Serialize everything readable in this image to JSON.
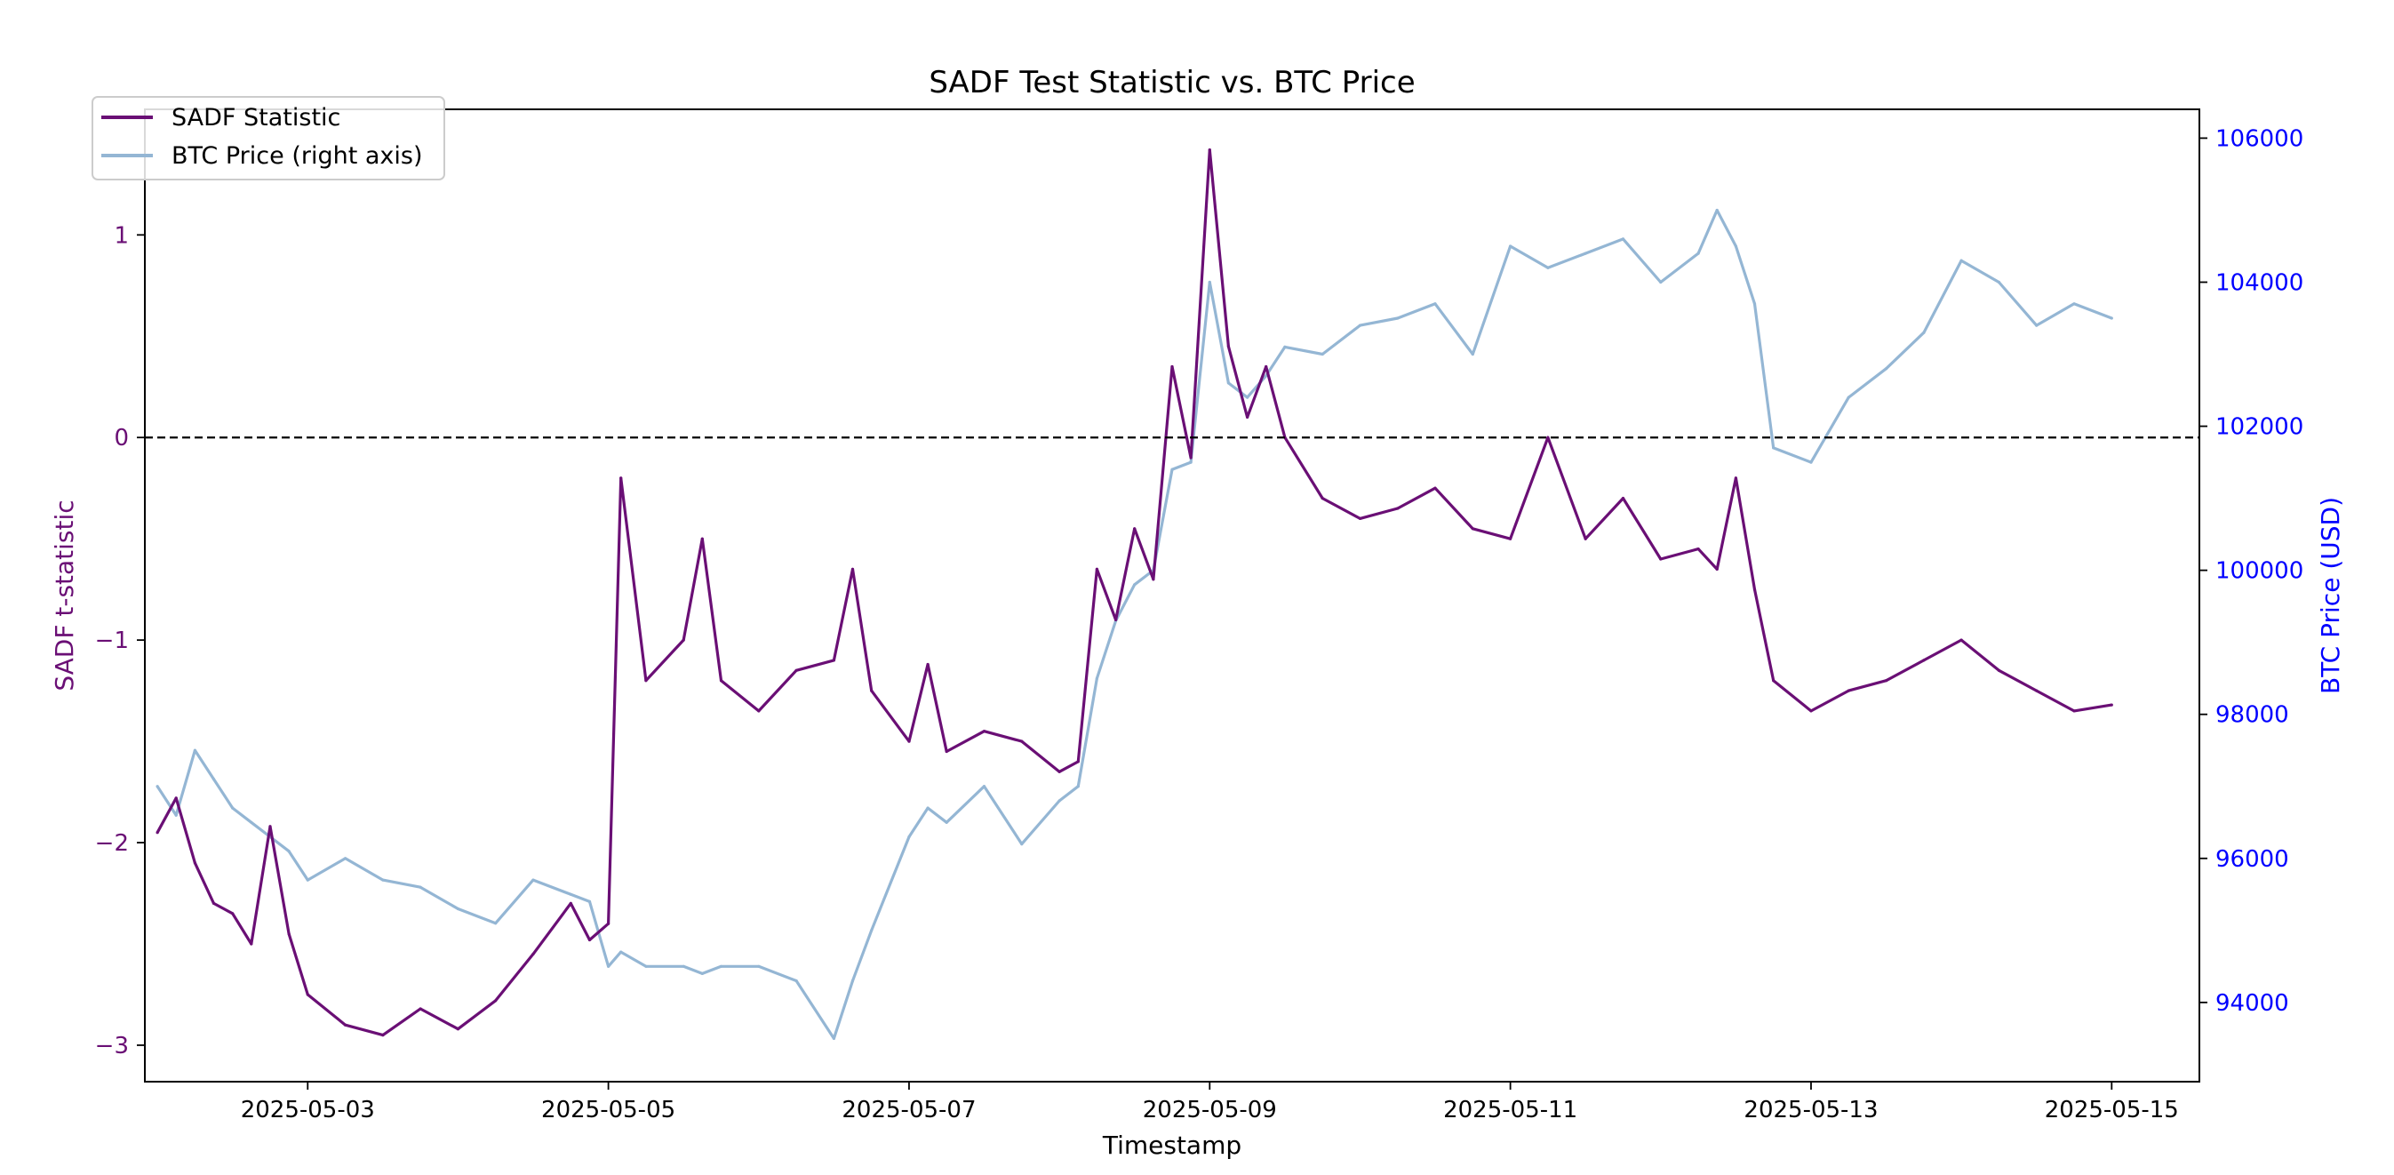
{
  "chart_data": {
    "type": "line",
    "title": "SADF Test Statistic vs. BTC Price",
    "xlabel": "Timestamp",
    "ylabel_left": "SADF t-statistic",
    "ylabel_right": "BTC Price (USD)",
    "x_ticks": [
      "2025-05-03",
      "2025-05-05",
      "2025-05-07",
      "2025-05-09",
      "2025-05-11",
      "2025-05-13",
      "2025-05-15"
    ],
    "y_left_ticks": [
      1,
      0,
      -1,
      -2,
      -3
    ],
    "y_left_tick_labels": [
      "1",
      "0",
      "−1",
      "−2",
      "−3"
    ],
    "y_left_range": [
      -3.18,
      1.62
    ],
    "y_right_ticks": [
      106000,
      104000,
      102000,
      100000,
      98000,
      96000,
      94000
    ],
    "y_right_tick_labels": [
      "106000",
      "104000",
      "102000",
      "100000",
      "98000",
      "96000",
      "94000"
    ],
    "y_right_range": [
      92900,
      106400
    ],
    "x_range": [
      "2025-05-01T22:00",
      "2025-05-15T14:00"
    ],
    "reference_line": {
      "y": 0,
      "style": "dashed",
      "color": "#000000"
    },
    "grid": false,
    "legend_position": "top-left",
    "colors": {
      "sadf": "#6a0f75",
      "btc": "#94b6d4",
      "left_axis": "#6a0f75",
      "right_axis": "#0000ff"
    },
    "series": [
      {
        "name": "SADF Statistic",
        "axis": "left",
        "x": [
          "2025-05-02T00:00",
          "2025-05-02T03:00",
          "2025-05-02T06:00",
          "2025-05-02T09:00",
          "2025-05-02T12:00",
          "2025-05-02T15:00",
          "2025-05-02T18:00",
          "2025-05-02T21:00",
          "2025-05-03T00:00",
          "2025-05-03T06:00",
          "2025-05-03T12:00",
          "2025-05-03T18:00",
          "2025-05-04T00:00",
          "2025-05-04T06:00",
          "2025-05-04T12:00",
          "2025-05-04T18:00",
          "2025-05-04T21:00",
          "2025-05-05T00:00",
          "2025-05-05T02:00",
          "2025-05-05T06:00",
          "2025-05-05T12:00",
          "2025-05-05T15:00",
          "2025-05-05T18:00",
          "2025-05-06T00:00",
          "2025-05-06T06:00",
          "2025-05-06T12:00",
          "2025-05-06T15:00",
          "2025-05-06T18:00",
          "2025-05-07T00:00",
          "2025-05-07T03:00",
          "2025-05-07T06:00",
          "2025-05-07T12:00",
          "2025-05-07T18:00",
          "2025-05-08T00:00",
          "2025-05-08T03:00",
          "2025-05-08T06:00",
          "2025-05-08T09:00",
          "2025-05-08T12:00",
          "2025-05-08T15:00",
          "2025-05-08T18:00",
          "2025-05-08T21:00",
          "2025-05-09T00:00",
          "2025-05-09T03:00",
          "2025-05-09T06:00",
          "2025-05-09T09:00",
          "2025-05-09T12:00",
          "2025-05-09T18:00",
          "2025-05-10T00:00",
          "2025-05-10T06:00",
          "2025-05-10T12:00",
          "2025-05-10T18:00",
          "2025-05-11T00:00",
          "2025-05-11T06:00",
          "2025-05-11T12:00",
          "2025-05-11T18:00",
          "2025-05-12T00:00",
          "2025-05-12T06:00",
          "2025-05-12T09:00",
          "2025-05-12T12:00",
          "2025-05-12T15:00",
          "2025-05-12T18:00",
          "2025-05-13T00:00",
          "2025-05-13T06:00",
          "2025-05-13T12:00",
          "2025-05-13T18:00",
          "2025-05-14T00:00",
          "2025-05-14T06:00",
          "2025-05-14T12:00",
          "2025-05-14T18:00",
          "2025-05-15T00:00"
        ],
        "values": [
          -1.95,
          -1.78,
          -2.1,
          -2.3,
          -2.35,
          -2.5,
          -1.92,
          -2.45,
          -2.75,
          -2.9,
          -2.95,
          -2.82,
          -2.92,
          -2.78,
          -2.55,
          -2.3,
          -2.48,
          -2.4,
          -0.2,
          -1.2,
          -1.0,
          -0.5,
          -1.2,
          -1.35,
          -1.15,
          -1.1,
          -0.65,
          -1.25,
          -1.5,
          -1.12,
          -1.55,
          -1.45,
          -1.5,
          -1.65,
          -1.6,
          -0.65,
          -0.9,
          -0.45,
          -0.7,
          0.35,
          -0.1,
          1.42,
          0.45,
          0.1,
          0.35,
          0.0,
          -0.3,
          -0.4,
          -0.35,
          -0.25,
          -0.45,
          -0.5,
          0.0,
          -0.5,
          -0.3,
          -0.6,
          -0.55,
          -0.65,
          -0.2,
          -0.75,
          -1.2,
          -1.35,
          -1.25,
          -1.2,
          -1.1,
          -1.0,
          -1.15,
          -1.25,
          -1.35,
          -1.32
        ]
      },
      {
        "name": "BTC Price (right axis)",
        "axis": "right",
        "x": [
          "2025-05-02T00:00",
          "2025-05-02T03:00",
          "2025-05-02T06:00",
          "2025-05-02T09:00",
          "2025-05-02T12:00",
          "2025-05-02T15:00",
          "2025-05-02T18:00",
          "2025-05-02T21:00",
          "2025-05-03T00:00",
          "2025-05-03T06:00",
          "2025-05-03T12:00",
          "2025-05-03T18:00",
          "2025-05-04T00:00",
          "2025-05-04T06:00",
          "2025-05-04T12:00",
          "2025-05-04T18:00",
          "2025-05-04T21:00",
          "2025-05-05T00:00",
          "2025-05-05T02:00",
          "2025-05-05T06:00",
          "2025-05-05T12:00",
          "2025-05-05T15:00",
          "2025-05-05T18:00",
          "2025-05-06T00:00",
          "2025-05-06T06:00",
          "2025-05-06T12:00",
          "2025-05-06T15:00",
          "2025-05-06T18:00",
          "2025-05-07T00:00",
          "2025-05-07T03:00",
          "2025-05-07T06:00",
          "2025-05-07T12:00",
          "2025-05-07T18:00",
          "2025-05-08T00:00",
          "2025-05-08T03:00",
          "2025-05-08T06:00",
          "2025-05-08T09:00",
          "2025-05-08T12:00",
          "2025-05-08T15:00",
          "2025-05-08T18:00",
          "2025-05-08T21:00",
          "2025-05-09T00:00",
          "2025-05-09T03:00",
          "2025-05-09T06:00",
          "2025-05-09T09:00",
          "2025-05-09T12:00",
          "2025-05-09T18:00",
          "2025-05-10T00:00",
          "2025-05-10T06:00",
          "2025-05-10T12:00",
          "2025-05-10T18:00",
          "2025-05-11T00:00",
          "2025-05-11T06:00",
          "2025-05-11T12:00",
          "2025-05-11T18:00",
          "2025-05-12T00:00",
          "2025-05-12T06:00",
          "2025-05-12T09:00",
          "2025-05-12T12:00",
          "2025-05-12T15:00",
          "2025-05-12T18:00",
          "2025-05-13T00:00",
          "2025-05-13T06:00",
          "2025-05-13T12:00",
          "2025-05-13T18:00",
          "2025-05-14T00:00",
          "2025-05-14T06:00",
          "2025-05-14T12:00",
          "2025-05-14T18:00",
          "2025-05-15T00:00"
        ],
        "values": [
          97000,
          96600,
          97500,
          97100,
          96700,
          96500,
          96300,
          96100,
          95700,
          96000,
          95700,
          95600,
          95300,
          95100,
          95700,
          95500,
          95400,
          94500,
          94700,
          94500,
          94500,
          94400,
          94500,
          94500,
          94300,
          93500,
          94300,
          95000,
          96300,
          96700,
          96500,
          97000,
          96200,
          96800,
          97000,
          98500,
          99300,
          99800,
          100000,
          101400,
          101500,
          104000,
          102600,
          102400,
          102700,
          103100,
          103000,
          103400,
          103500,
          103700,
          103000,
          104500,
          104200,
          104400,
          104600,
          104000,
          104400,
          105000,
          104500,
          103700,
          101700,
          101500,
          102400,
          102800,
          103300,
          104300,
          104000,
          103400,
          103700,
          103500
        ]
      }
    ]
  }
}
